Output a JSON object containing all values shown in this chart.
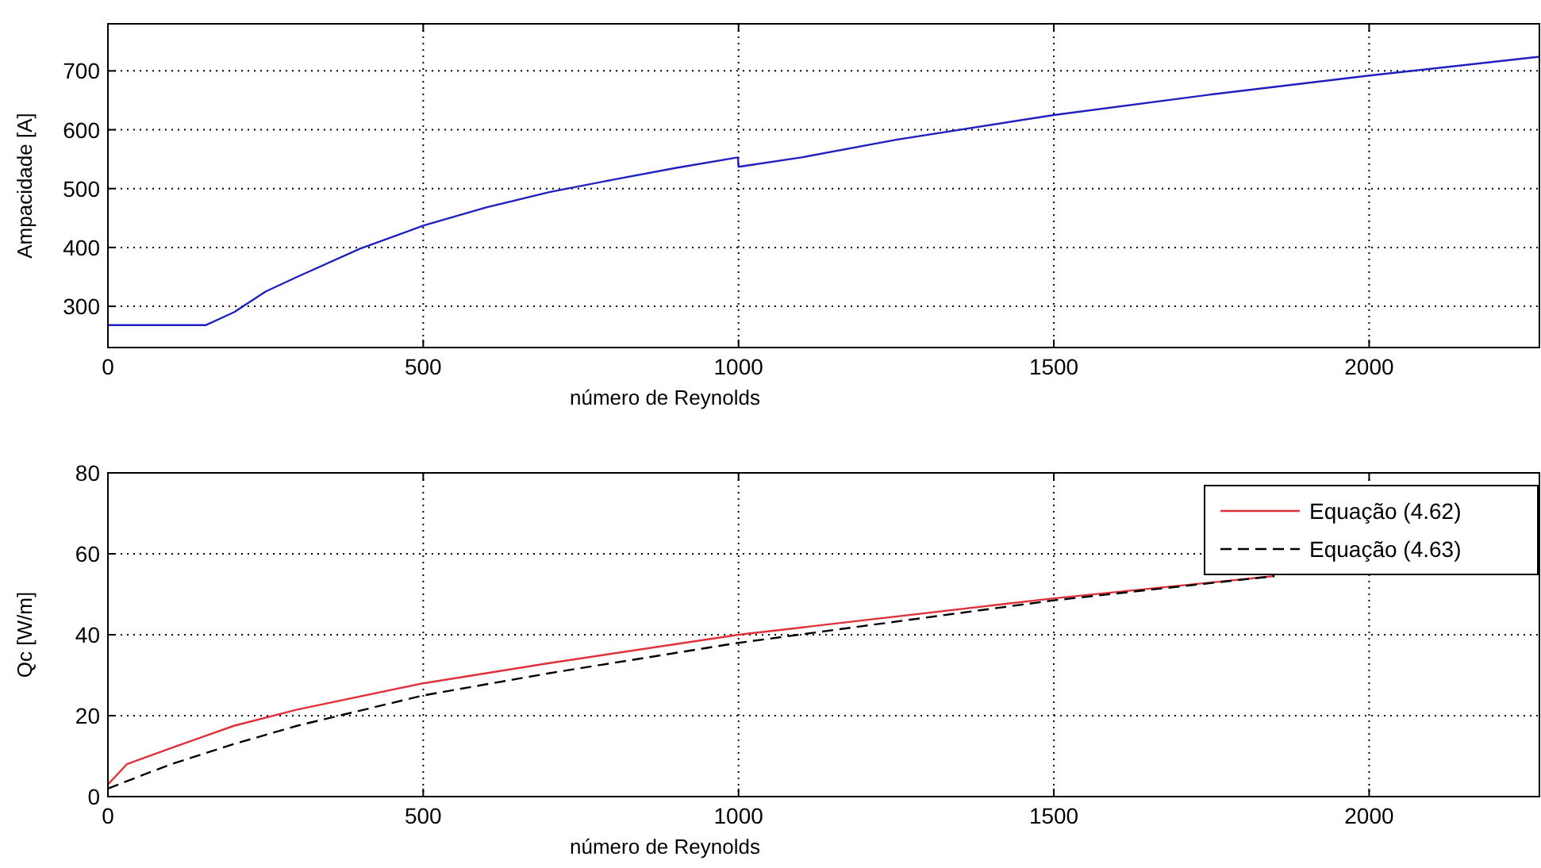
{
  "chart_data": [
    {
      "type": "line",
      "xlabel": "número de Reynolds",
      "ylabel": "Ampacidade [A]",
      "xlim": [
        0,
        2270
      ],
      "ylim": [
        230,
        780
      ],
      "xticks": [
        0,
        500,
        1000,
        1500,
        2000
      ],
      "yticks": [
        300,
        400,
        500,
        600,
        700
      ],
      "grid": true,
      "legend": false,
      "series": [
        {
          "color": "#2020c0",
          "line_style": "solid",
          "x": [
            0,
            155,
            200,
            250,
            300,
            400,
            500,
            600,
            700,
            800,
            900,
            999,
            1000,
            1100,
            1250,
            1500,
            1750,
            2000,
            2270
          ],
          "values": [
            268,
            268,
            290,
            325,
            350,
            398,
            437,
            468,
            494,
            515,
            535,
            553,
            537,
            553,
            583,
            625,
            660,
            692,
            724
          ]
        }
      ]
    },
    {
      "type": "line",
      "xlabel": "número de Reynolds",
      "ylabel": "Qc [W/m]",
      "xlim": [
        0,
        2270
      ],
      "ylim": [
        0,
        80
      ],
      "xticks": [
        0,
        500,
        1000,
        1500,
        2000
      ],
      "yticks": [
        0,
        20,
        40,
        60,
        80
      ],
      "grid": true,
      "legend": "top right",
      "series": [
        {
          "name": "Equação (4.62)",
          "color": "#e0303a",
          "line_style": "solid",
          "x": [
            0,
            30,
            100,
            200,
            300,
            500,
            700,
            1000,
            1500,
            1850
          ],
          "values": [
            3,
            8,
            12,
            17.5,
            21.5,
            28,
            33,
            40,
            49,
            54.5
          ]
        },
        {
          "name": "Equação (4.63)",
          "color": "#000000",
          "line_style": "dashed",
          "x": [
            0,
            100,
            200,
            300,
            500,
            700,
            1000,
            1500,
            1850
          ],
          "values": [
            2,
            8,
            13,
            17.5,
            25,
            30.5,
            38,
            48.5,
            54.5
          ]
        }
      ]
    }
  ]
}
